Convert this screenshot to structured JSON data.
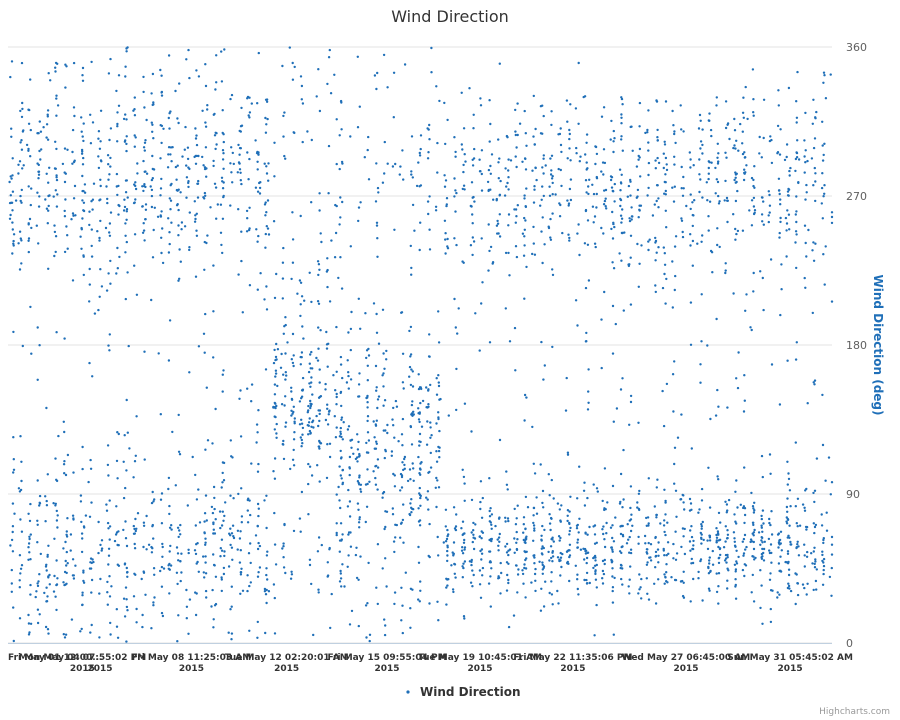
{
  "chart_data": {
    "type": "scatter",
    "title": "Wind Direction",
    "ylabel": "Wind Direction (deg)",
    "xlabel": "",
    "ylim": [
      0,
      360
    ],
    "yticks": [
      0,
      90,
      180,
      270,
      360
    ],
    "x_range": [
      "2015-05-01T12:00:00",
      "2015-06-01T20:00:00"
    ],
    "xticks": [
      {
        "date": "2015-05-01T12:00:00",
        "label": "Fri May 01 12:00...",
        "year": "2015"
      },
      {
        "date": "2015-05-04T07:55:02",
        "label": "Mon May 04 07:55:02 PM",
        "year": "2015"
      },
      {
        "date": "2015-05-08T11:25:03",
        "label": "Fri May 08 11:25:03 AM",
        "year": "2015"
      },
      {
        "date": "2015-05-12T02:20:01",
        "label": "Tue May 12 02:20:01 AM",
        "year": "2015"
      },
      {
        "date": "2015-05-15T21:55:04",
        "label": "Fri May 15 09:55:04 PM",
        "year": "2015"
      },
      {
        "date": "2015-05-19T10:45:01",
        "label": "Tue May 19 10:45:01 AM",
        "year": "2015"
      },
      {
        "date": "2015-05-22T23:35:06",
        "label": "Fri May 22 11:35:06 PM",
        "year": "2015"
      },
      {
        "date": "2015-05-27T06:45:00",
        "label": "Wed May 27 06:45:00 AM",
        "year": "2015"
      },
      {
        "date": "2015-05-31T05:45:02",
        "label": "Sun May 31 05:45:02 AM",
        "year": "2015"
      }
    ],
    "grid": true,
    "legend": {
      "position": "bottom-center"
    },
    "series": [
      {
        "name": "Wind Direction",
        "color": "#1f6fb8",
        "approx_points_per_day": 120,
        "regimes": [
          {
            "start": "2015-05-01T12:00:00",
            "end": "2015-05-11T12:00:00",
            "modes": [
              [
                275,
                28,
                0.45
              ],
              [
                55,
                30,
                0.4
              ],
              [
                330,
                25,
                0.08
              ],
              [
                150,
                45,
                0.07
              ]
            ]
          },
          {
            "start": "2015-05-11T12:00:00",
            "end": "2015-05-14T00:00:00",
            "modes": [
              [
                140,
                25,
                0.55
              ],
              [
                210,
                30,
                0.2
              ],
              [
                60,
                25,
                0.1
              ],
              [
                320,
                30,
                0.15
              ]
            ]
          },
          {
            "start": "2015-05-14T00:00:00",
            "end": "2015-05-18T00:00:00",
            "modes": [
              [
                115,
                30,
                0.5
              ],
              [
                160,
                25,
                0.15
              ],
              [
                290,
                35,
                0.2
              ],
              [
                40,
                25,
                0.15
              ]
            ]
          },
          {
            "start": "2015-05-18T00:00:00",
            "end": "2015-06-01T20:00:00",
            "modes": [
              [
                58,
                18,
                0.48
              ],
              [
                280,
                28,
                0.42
              ],
              [
                200,
                40,
                0.05
              ],
              [
                130,
                40,
                0.05
              ]
            ]
          }
        ]
      }
    ],
    "credits": "Highcharts.com"
  }
}
